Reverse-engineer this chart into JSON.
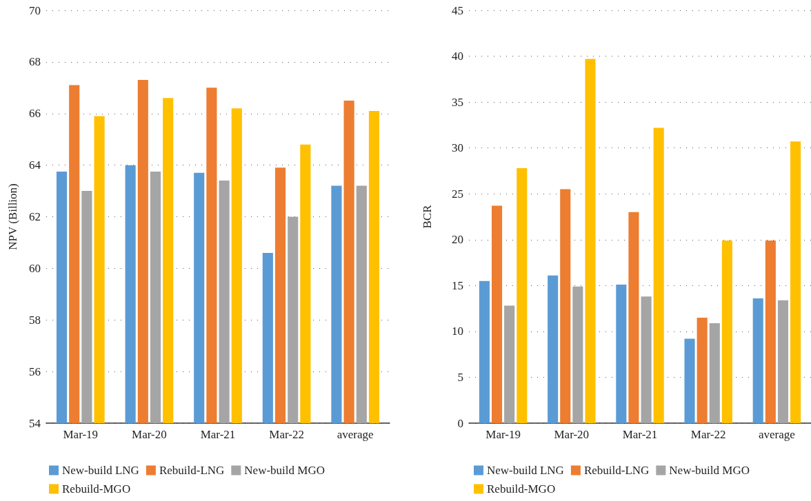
{
  "chart_data": [
    {
      "type": "bar",
      "ylabel": "NPV (Billion)",
      "categories": [
        "Mar-19",
        "Mar-20",
        "Mar-21",
        "Mar-22",
        "average"
      ],
      "ylim": [
        54,
        70
      ],
      "yticks": [
        54,
        56,
        58,
        60,
        62,
        64,
        66,
        68,
        70
      ],
      "grid": "y",
      "legend": "bottom",
      "series": [
        {
          "name": "New-build LNG",
          "color": "#5b9bd5",
          "values": [
            63.75,
            64.0,
            63.7,
            60.6,
            63.2
          ]
        },
        {
          "name": "Rebuild-LNG",
          "color": "#ed7d31",
          "values": [
            67.1,
            67.3,
            67.0,
            63.9,
            66.5
          ]
        },
        {
          "name": "New-build MGO",
          "color": "#a5a5a5",
          "values": [
            63.0,
            63.75,
            63.4,
            62.0,
            63.2
          ]
        },
        {
          "name": "Rebuild-MGO",
          "color": "#ffc000",
          "values": [
            65.9,
            66.6,
            66.2,
            64.8,
            66.1
          ]
        }
      ]
    },
    {
      "type": "bar",
      "ylabel": "BCR",
      "categories": [
        "Mar-19",
        "Mar-20",
        "Mar-21",
        "Mar-22",
        "average"
      ],
      "ylim": [
        0,
        45
      ],
      "yticks": [
        0,
        5,
        10,
        15,
        20,
        25,
        30,
        35,
        40,
        45
      ],
      "grid": "y",
      "legend": "bottom",
      "series": [
        {
          "name": "New-build LNG",
          "color": "#5b9bd5",
          "values": [
            15.5,
            16.1,
            15.1,
            9.2,
            13.6
          ]
        },
        {
          "name": "Rebuild-LNG",
          "color": "#ed7d31",
          "values": [
            23.7,
            25.5,
            23.0,
            11.5,
            19.9
          ]
        },
        {
          "name": "New-build MGO",
          "color": "#a5a5a5",
          "values": [
            12.8,
            14.9,
            13.8,
            10.9,
            13.4
          ]
        },
        {
          "name": "Rebuild-MGO",
          "color": "#ffc000",
          "values": [
            27.8,
            39.7,
            32.2,
            19.9,
            30.7
          ]
        }
      ]
    }
  ]
}
